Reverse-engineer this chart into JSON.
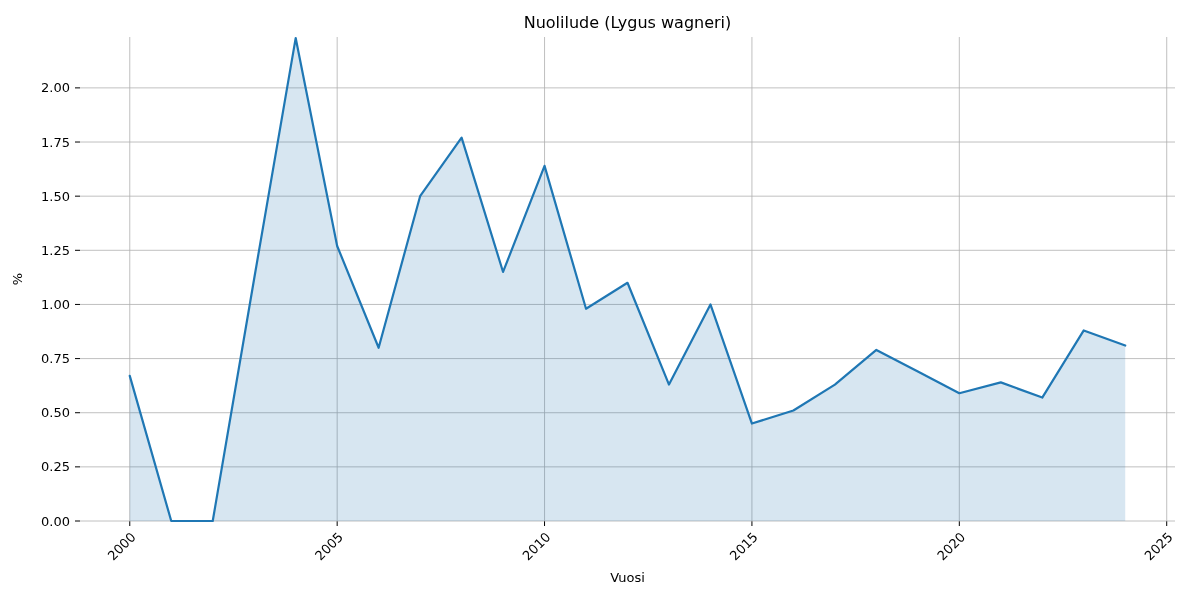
{
  "chart_data": {
    "type": "area",
    "title": "Nuolilude (Lygus wagneri)",
    "xlabel": "Vuosi",
    "ylabel": "%",
    "x": [
      2000,
      2001,
      2002,
      2003,
      2004,
      2005,
      2006,
      2007,
      2008,
      2009,
      2010,
      2011,
      2012,
      2013,
      2014,
      2015,
      2016,
      2017,
      2018,
      2019,
      2020,
      2021,
      2022,
      2023,
      2024
    ],
    "series": [
      {
        "color": "#1f77b4",
        "values": [
          0.67,
          0,
          0,
          1.12,
          2.23,
          1.27,
          0.8,
          1.5,
          1.77,
          1.15,
          1.64,
          0.98,
          1.1,
          0.63,
          1.0,
          0.45,
          0.51,
          0.63,
          0.79,
          0.69,
          0.59,
          0.64,
          0.57,
          0.88,
          0.81
        ]
      }
    ],
    "xlim": [
      1998.8,
      2025.2
    ],
    "xticks": [
      2000,
      2005,
      2010,
      2015,
      2020,
      2025
    ],
    "ylim": [
      0,
      2.235
    ],
    "yticks": [
      {
        "value": 0,
        "label": "0.00"
      },
      {
        "value": 0.25,
        "label": "0.25"
      },
      {
        "value": 0.5,
        "label": "0.50"
      },
      {
        "value": 0.75,
        "label": "0.75"
      },
      {
        "value": 1,
        "label": "1.00"
      },
      {
        "value": 1.25,
        "label": "1.25"
      },
      {
        "value": 1.5,
        "label": "1.50"
      },
      {
        "value": 1.75,
        "label": "1.75"
      },
      {
        "value": 2,
        "label": "2.00"
      }
    ],
    "grid": true,
    "line_style": "solid"
  }
}
